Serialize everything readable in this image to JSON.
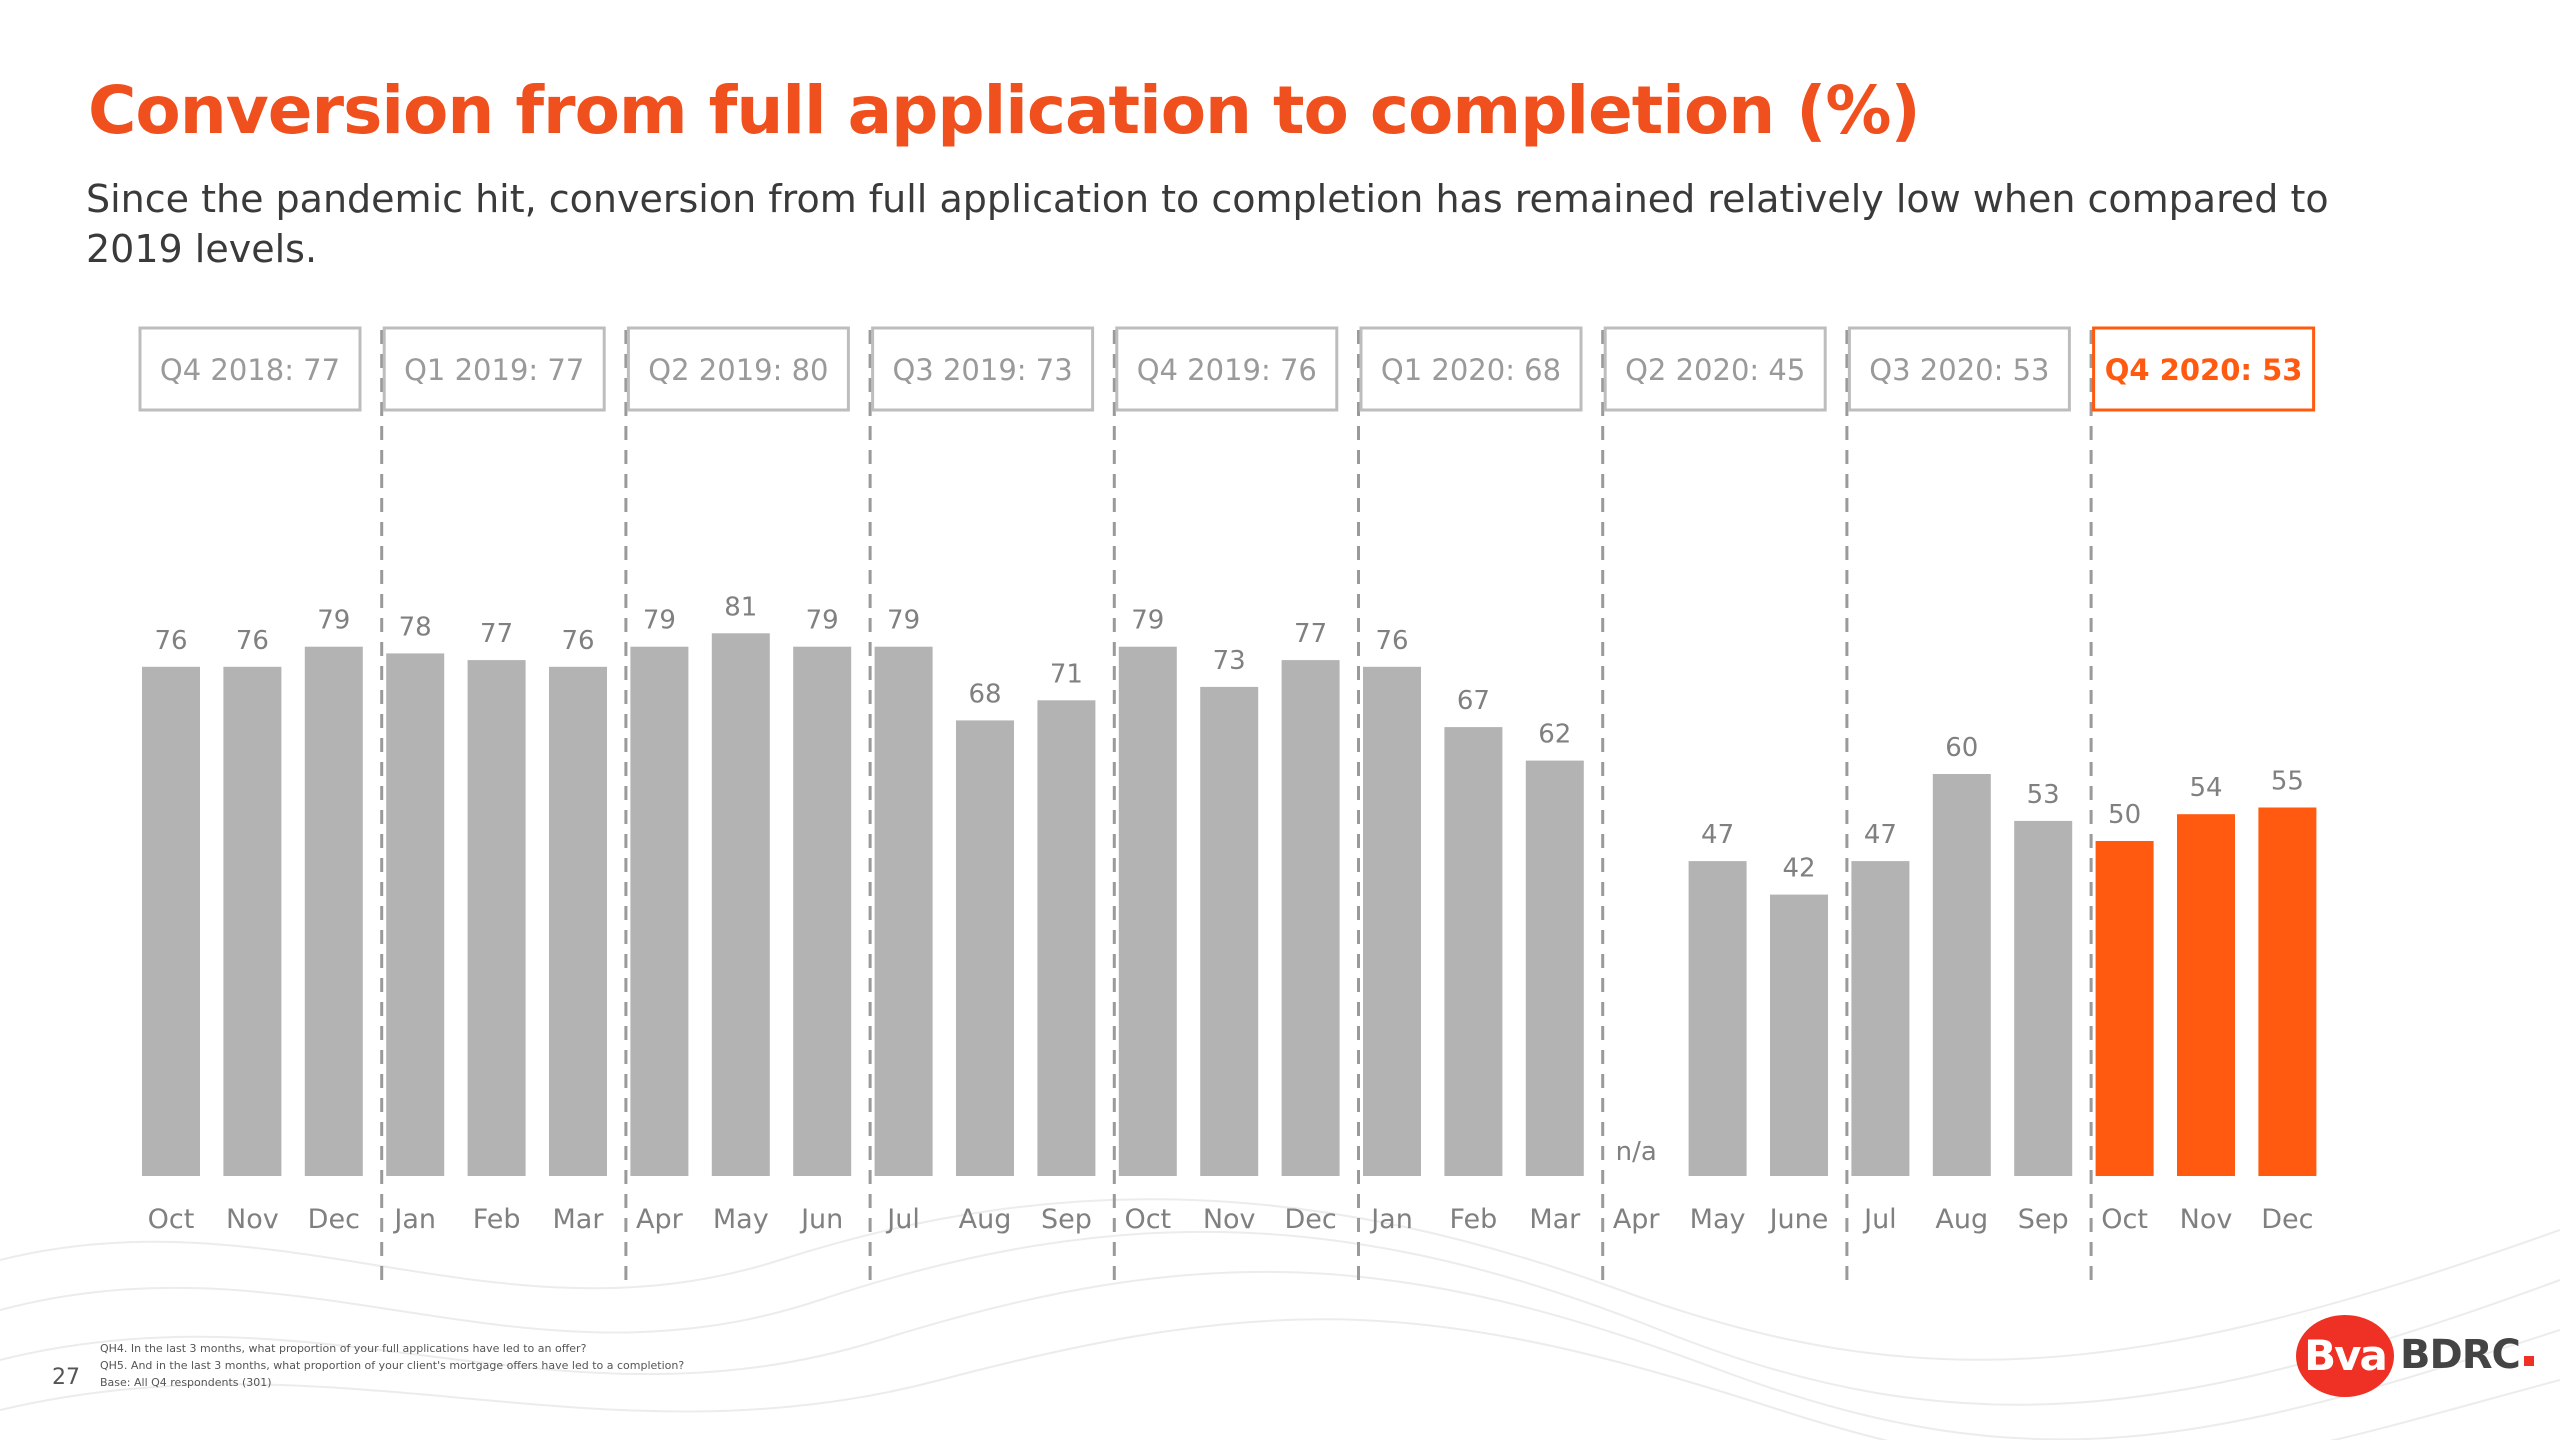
{
  "slide": {
    "title": "Conversion from full application to completion (%)",
    "subtitle": "Since the pandemic hit, conversion from full application to completion has remained relatively low when compared to 2019 levels.",
    "page_number": "27",
    "notes": [
      "QH4. In the last 3 months, what proportion of your full applications have led to an offer?",
      "QH5. And in the last 3 months, what proportion of your client's mortgage offers have led to a completion?",
      "Base: All Q4 respondents (301)"
    ],
    "logo": {
      "badge": "Bva",
      "word": "BDRC"
    }
  },
  "colors": {
    "title": "#F0501E",
    "bar_default": "#B3B3B3",
    "bar_highlight": "#FF5A0F",
    "quarter_border": "#BDBDBD",
    "quarter_text_default": "#9A9A9A",
    "quarter_text_highlight": "#FF5A0F",
    "label_text": "#808080",
    "divider": "#9A9A9A"
  },
  "chart_data": {
    "type": "bar",
    "ylim": [
      0,
      100
    ],
    "grid": false,
    "legend": "none",
    "missing_label": "n/a",
    "quarters": [
      {
        "label": "Q4 2018: 77",
        "highlight": false,
        "months": [
          "Oct",
          "Nov",
          "Dec"
        ],
        "values": [
          76,
          76,
          79
        ]
      },
      {
        "label": "Q1 2019: 77",
        "highlight": false,
        "months": [
          "Jan",
          "Feb",
          "Mar"
        ],
        "values": [
          78,
          77,
          76
        ]
      },
      {
        "label": "Q2 2019: 80",
        "highlight": false,
        "months": [
          "Apr",
          "May",
          "Jun"
        ],
        "values": [
          79,
          81,
          79
        ]
      },
      {
        "label": "Q3 2019: 73",
        "highlight": false,
        "months": [
          "Jul",
          "Aug",
          "Sep"
        ],
        "values": [
          79,
          68,
          71
        ]
      },
      {
        "label": "Q4 2019: 76",
        "highlight": false,
        "months": [
          "Oct",
          "Nov",
          "Dec"
        ],
        "values": [
          79,
          73,
          77
        ]
      },
      {
        "label": "Q1 2020: 68",
        "highlight": false,
        "months": [
          "Jan",
          "Feb",
          "Mar"
        ],
        "values": [
          76,
          67,
          62
        ]
      },
      {
        "label": "Q2 2020: 45",
        "highlight": false,
        "months": [
          "Apr",
          "May",
          "June"
        ],
        "values": [
          null,
          47,
          42
        ]
      },
      {
        "label": "Q3 2020: 53",
        "highlight": false,
        "months": [
          "Jul",
          "Aug",
          "Sep"
        ],
        "values": [
          47,
          60,
          53
        ]
      },
      {
        "label": "Q4 2020: 53",
        "highlight": true,
        "months": [
          "Oct",
          "Nov",
          "Dec"
        ],
        "values": [
          50,
          54,
          55
        ]
      }
    ]
  }
}
